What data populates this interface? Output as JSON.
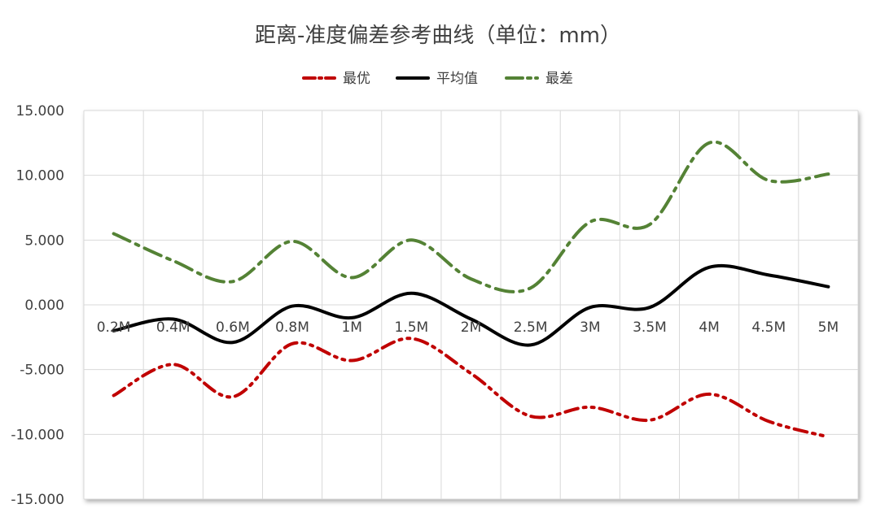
{
  "chart_data": {
    "type": "line",
    "title": "距离-准度偏差参考曲线（单位：mm）",
    "xlabel": "",
    "ylabel": "",
    "categories": [
      "0.2M",
      "0.4M",
      "0.6M",
      "0.8M",
      "1M",
      "1.5M",
      "2M",
      "2.5M",
      "3M",
      "3.5M",
      "4M",
      "4.5M",
      "5M"
    ],
    "ylim": [
      -15,
      15
    ],
    "yticks": [
      "15.000",
      "10.000",
      "5.000",
      "0.000",
      "-5.000",
      "-10.000",
      "-15.000"
    ],
    "grid": true,
    "legend_position": "top",
    "series": [
      {
        "name": "最优",
        "color": "#C00000",
        "style": "dash-dot-dot",
        "values": [
          -7.0,
          -4.6,
          -7.1,
          -3.0,
          -4.3,
          -2.6,
          -5.3,
          -8.6,
          -7.9,
          -8.9,
          -6.9,
          -9.0,
          -10.2
        ]
      },
      {
        "name": "平均值",
        "color": "#000000",
        "style": "solid",
        "values": [
          -2.0,
          -1.1,
          -2.9,
          -0.1,
          -1.0,
          0.9,
          -1.1,
          -3.1,
          -0.2,
          -0.2,
          2.9,
          2.3,
          1.4
        ]
      },
      {
        "name": "最差",
        "color": "#548235",
        "style": "long-dash-dot",
        "values": [
          5.5,
          3.4,
          1.8,
          4.9,
          2.1,
          5.0,
          2.0,
          1.3,
          6.4,
          6.2,
          12.5,
          9.6,
          10.1
        ]
      }
    ]
  }
}
